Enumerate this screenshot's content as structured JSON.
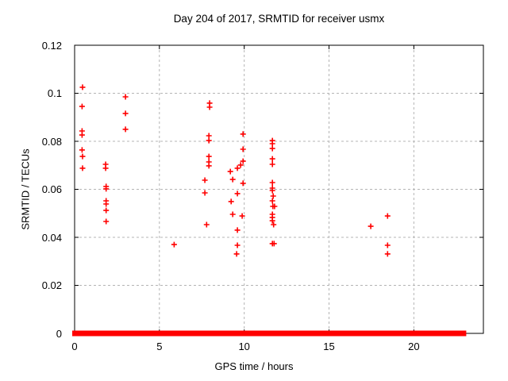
{
  "figure": {
    "background": "#ffffff"
  },
  "chart_data": {
    "type": "scatter",
    "title": "Day 204 of 2017, SRMTID for receiver usmx",
    "xlabel": "GPS time / hours",
    "ylabel": "SRMTID / TECUs",
    "xlim": [
      0,
      24.1
    ],
    "ylim": [
      0,
      0.12
    ],
    "xticks": {
      "values": [
        0,
        5,
        10,
        15,
        20
      ],
      "labels": [
        "0",
        "5",
        "10",
        "15",
        "20"
      ]
    },
    "yticks": {
      "values": [
        0,
        0.02,
        0.04,
        0.06,
        0.08,
        0.1,
        0.12
      ],
      "labels": [
        "0",
        "0.02",
        "0.04",
        "0.06",
        "0.08",
        "0.1",
        "0.12"
      ]
    },
    "grid": true,
    "legend": "none",
    "marker": {
      "shape": "plus",
      "color": "#ff0000",
      "size": 7
    },
    "border_color": "#000000",
    "grid_color": "#b4b4b4",
    "series": [
      {
        "name": "SRMTID",
        "points": [
          [
            0.47,
            0.1025
          ],
          [
            0.44,
            0.0945
          ],
          [
            0.44,
            0.0843
          ],
          [
            0.44,
            0.0826
          ],
          [
            0.44,
            0.0764
          ],
          [
            0.47,
            0.0737
          ],
          [
            0.47,
            0.0688
          ],
          [
            1.83,
            0.0704
          ],
          [
            1.83,
            0.0688
          ],
          [
            1.86,
            0.0612
          ],
          [
            1.86,
            0.0602
          ],
          [
            1.86,
            0.0552
          ],
          [
            1.86,
            0.0539
          ],
          [
            1.86,
            0.0512
          ],
          [
            1.86,
            0.0466
          ],
          [
            3.0,
            0.0985
          ],
          [
            3.0,
            0.0916
          ],
          [
            3.0,
            0.085
          ],
          [
            5.87,
            0.037
          ],
          [
            7.96,
            0.0959
          ],
          [
            7.96,
            0.0942
          ],
          [
            7.92,
            0.0823
          ],
          [
            7.92,
            0.0803
          ],
          [
            7.92,
            0.0737
          ],
          [
            7.92,
            0.0714
          ],
          [
            7.92,
            0.0698
          ],
          [
            7.68,
            0.0638
          ],
          [
            7.68,
            0.0585
          ],
          [
            7.78,
            0.0453
          ],
          [
            9.93,
            0.083
          ],
          [
            9.93,
            0.0767
          ],
          [
            9.93,
            0.0717
          ],
          [
            9.79,
            0.0701
          ],
          [
            9.6,
            0.0688
          ],
          [
            9.18,
            0.0674
          ],
          [
            9.32,
            0.0641
          ],
          [
            9.93,
            0.0625
          ],
          [
            9.6,
            0.0582
          ],
          [
            9.23,
            0.0549
          ],
          [
            9.32,
            0.0496
          ],
          [
            9.88,
            0.0489
          ],
          [
            9.6,
            0.043
          ],
          [
            9.6,
            0.0367
          ],
          [
            9.55,
            0.0331
          ],
          [
            11.66,
            0.0803
          ],
          [
            11.66,
            0.079
          ],
          [
            11.66,
            0.077
          ],
          [
            11.66,
            0.0727
          ],
          [
            11.66,
            0.0704
          ],
          [
            11.66,
            0.0628
          ],
          [
            11.66,
            0.0605
          ],
          [
            11.66,
            0.0595
          ],
          [
            11.71,
            0.0572
          ],
          [
            11.66,
            0.0552
          ],
          [
            11.69,
            0.0529
          ],
          [
            11.79,
            0.0529
          ],
          [
            11.66,
            0.0496
          ],
          [
            11.66,
            0.0483
          ],
          [
            11.66,
            0.0469
          ],
          [
            11.73,
            0.0453
          ],
          [
            11.66,
            0.0374
          ],
          [
            11.76,
            0.0374
          ],
          [
            17.46,
            0.0446
          ],
          [
            18.45,
            0.0489
          ],
          [
            18.45,
            0.0367
          ],
          [
            18.45,
            0.0331
          ]
        ]
      }
    ],
    "zero_line_segments": [
      [
        0.0,
        0.45
      ],
      [
        0.62,
        11.6
      ],
      [
        11.8,
        17.89
      ],
      [
        18.13,
        19.95
      ],
      [
        20.16,
        22.2
      ],
      [
        22.36,
        22.95
      ]
    ]
  }
}
